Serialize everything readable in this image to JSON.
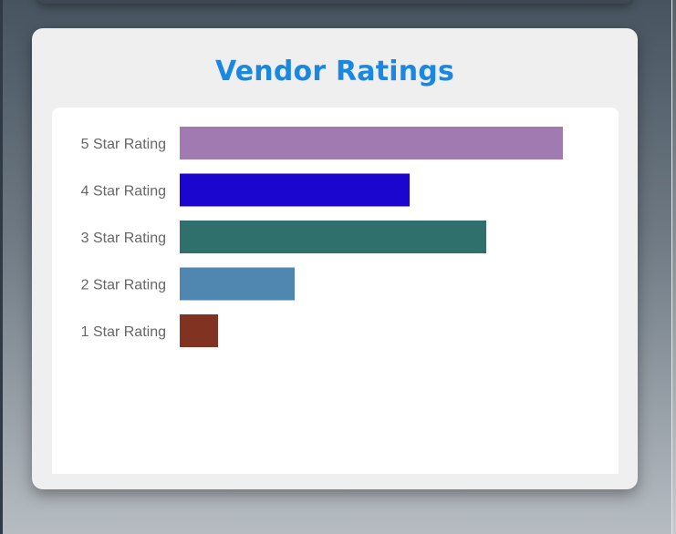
{
  "page": {
    "title": "Vendor Ratings"
  },
  "chart_data": {
    "type": "bar",
    "orientation": "horizontal",
    "title": "Vendor Ratings",
    "categories": [
      "5 Star Rating",
      "4 Star Rating",
      "3 Star Rating",
      "2 Star Rating",
      "1 Star Rating"
    ],
    "values": [
      100,
      60,
      80,
      30,
      10
    ],
    "colors": [
      "#a07ab0",
      "#1b06d0",
      "#2f706d",
      "#5087b0",
      "#823220"
    ],
    "xlim": [
      0,
      100
    ],
    "grid": false,
    "legend": "none"
  }
}
